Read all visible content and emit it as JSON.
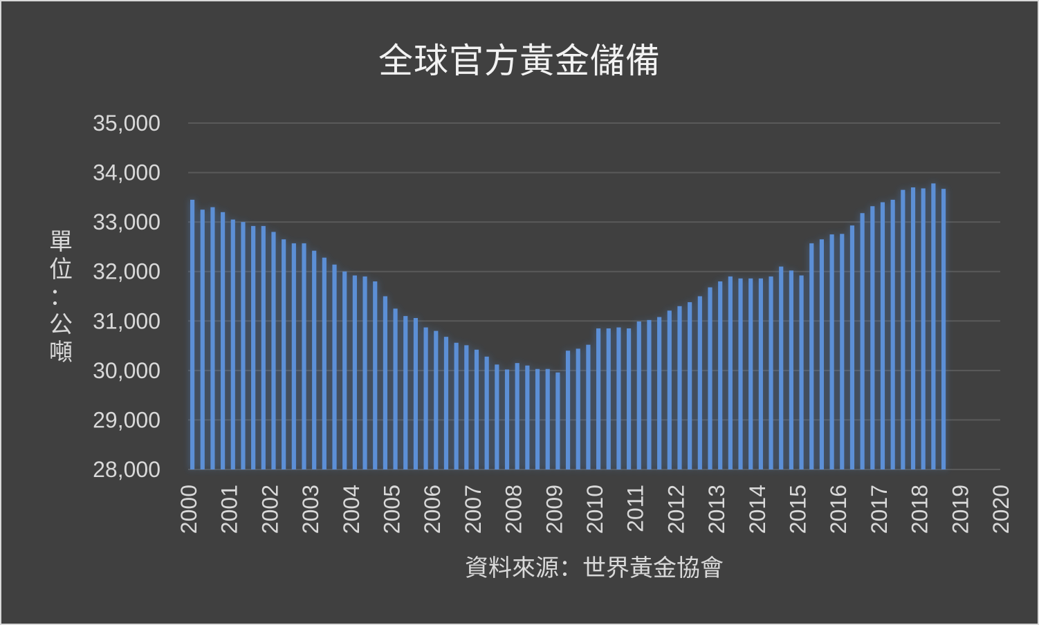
{
  "chart_data": {
    "type": "bar",
    "title": "全球官方黃金儲備",
    "ylabel": "單位：公噸",
    "xlabel": "資料來源：世界黃金協會",
    "ylim": [
      28000,
      35000
    ],
    "yticks": [
      "35,000",
      "34,000",
      "33,000",
      "32,000",
      "31,000",
      "30,000",
      "29,000",
      "28,000"
    ],
    "ytick_values": [
      35000,
      34000,
      33000,
      32000,
      31000,
      30000,
      29000,
      28000
    ],
    "xticks": [
      "2000",
      "2001",
      "2002",
      "2003",
      "2004",
      "2005",
      "2006",
      "2007",
      "2008",
      "2009",
      "2010",
      "2011",
      "2012",
      "2013",
      "2014",
      "2015",
      "2016",
      "2017",
      "2018",
      "2019",
      "2020"
    ],
    "xlim": [
      2000,
      2020
    ],
    "x_interval": "quarterly",
    "grid": true,
    "bar_color": "#5b8fd6",
    "background": "#404040",
    "values": [
      33450,
      33250,
      33300,
      33200,
      33050,
      33000,
      32920,
      32920,
      32800,
      32650,
      32570,
      32570,
      32420,
      32280,
      32140,
      32000,
      31920,
      31900,
      31800,
      31500,
      31250,
      31100,
      31060,
      30870,
      30800,
      30680,
      30560,
      30510,
      30420,
      30280,
      30120,
      30020,
      30150,
      30100,
      30030,
      30030,
      29960,
      30400,
      30440,
      30520,
      30850,
      30850,
      30870,
      30850,
      30990,
      31020,
      31080,
      31210,
      31300,
      31380,
      31500,
      31680,
      31800,
      31900,
      31860,
      31860,
      31860,
      31900,
      32100,
      32020,
      31920,
      32570,
      32650,
      32750,
      32760,
      32930,
      33180,
      33320,
      33400,
      33450,
      33650,
      33700,
      33680,
      33780,
      33670
    ]
  }
}
